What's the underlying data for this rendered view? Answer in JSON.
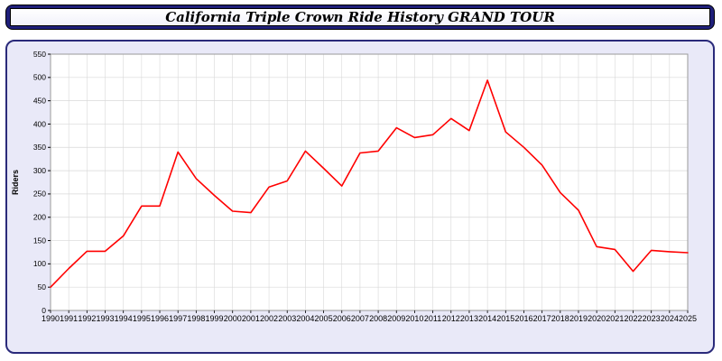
{
  "header": {
    "title": "California Triple Crown Ride History GRAND TOUR"
  },
  "chart_data": {
    "type": "line",
    "title": "California Triple Crown Ride History GRAND TOUR",
    "xlabel": "",
    "ylabel": "Riders",
    "ylim": [
      0,
      550
    ],
    "ytick_step": 50,
    "grid": true,
    "legend_position": "none",
    "categories": [
      "1990",
      "1991",
      "1992",
      "1993",
      "1994",
      "1995",
      "1996",
      "1997",
      "1998",
      "1999",
      "2000",
      "2001",
      "2002",
      "2003",
      "2004",
      "2005",
      "2006",
      "2007",
      "2008",
      "2009",
      "2010",
      "2011",
      "2012",
      "2013",
      "2014",
      "2015",
      "2016",
      "2017",
      "2018",
      "2019",
      "2020",
      "2021",
      "2022",
      "2023",
      "2024",
      "2025"
    ],
    "series": [
      {
        "name": "Riders",
        "color": "#ff0000",
        "values": [
          50,
          90,
          127,
          127,
          160,
          224,
          224,
          340,
          283,
          247,
          213,
          210,
          265,
          278,
          342,
          305,
          267,
          338,
          342,
          392,
          371,
          377,
          412,
          386,
          494,
          383,
          350,
          312,
          253,
          215,
          137,
          131,
          84,
          129,
          126,
          124
        ]
      }
    ],
    "colors": {
      "line": "#ff0000",
      "panel_background": "#e9e9f8",
      "plot_background": "#ffffff",
      "gridline": "#d8d8d8",
      "axis_frame": "#9a9a9a",
      "panel_border": "#2a2a7a",
      "titlebar_background": "#1f1f7a",
      "tick_text": "#000000"
    }
  }
}
